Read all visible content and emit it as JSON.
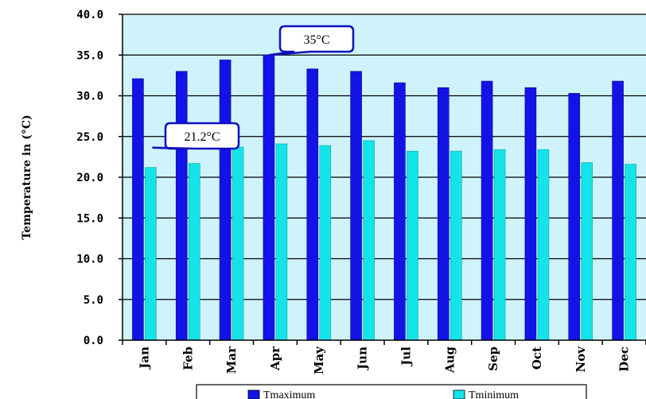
{
  "chart_data": {
    "type": "bar",
    "categories": [
      "Jan",
      "Feb",
      "Mar",
      "Apr",
      "May",
      "Jun",
      "Jul",
      "Aug",
      "Sep",
      "Oct",
      "Nov",
      "Dec"
    ],
    "series": [
      {
        "name": "Tmaximum",
        "color": "#1313e8",
        "values": [
          32.1,
          33.0,
          34.4,
          35.0,
          33.3,
          33.0,
          31.6,
          31.0,
          31.8,
          31.0,
          30.3,
          31.8
        ]
      },
      {
        "name": "Tminimum",
        "color": "#14e4e8",
        "values": [
          21.2,
          21.7,
          23.7,
          24.1,
          23.9,
          24.5,
          23.2,
          23.2,
          23.4,
          23.4,
          21.8,
          21.6
        ]
      }
    ],
    "ylabel": "Temperature in (°C)",
    "ylim": [
      0,
      40
    ],
    "yticks": [
      "0.0",
      "5.0",
      "10.0",
      "15.0",
      "20.0",
      "25.0",
      "30.0",
      "35.0",
      "40.0"
    ],
    "grid": true,
    "legend_position": "bottom",
    "plot_background": "#cff3fa",
    "annotations": [
      {
        "text": "35°C",
        "category": "Apr",
        "value": 35.0
      },
      {
        "text": "21.2°C",
        "category": "Jan",
        "value": 21.2
      }
    ]
  }
}
